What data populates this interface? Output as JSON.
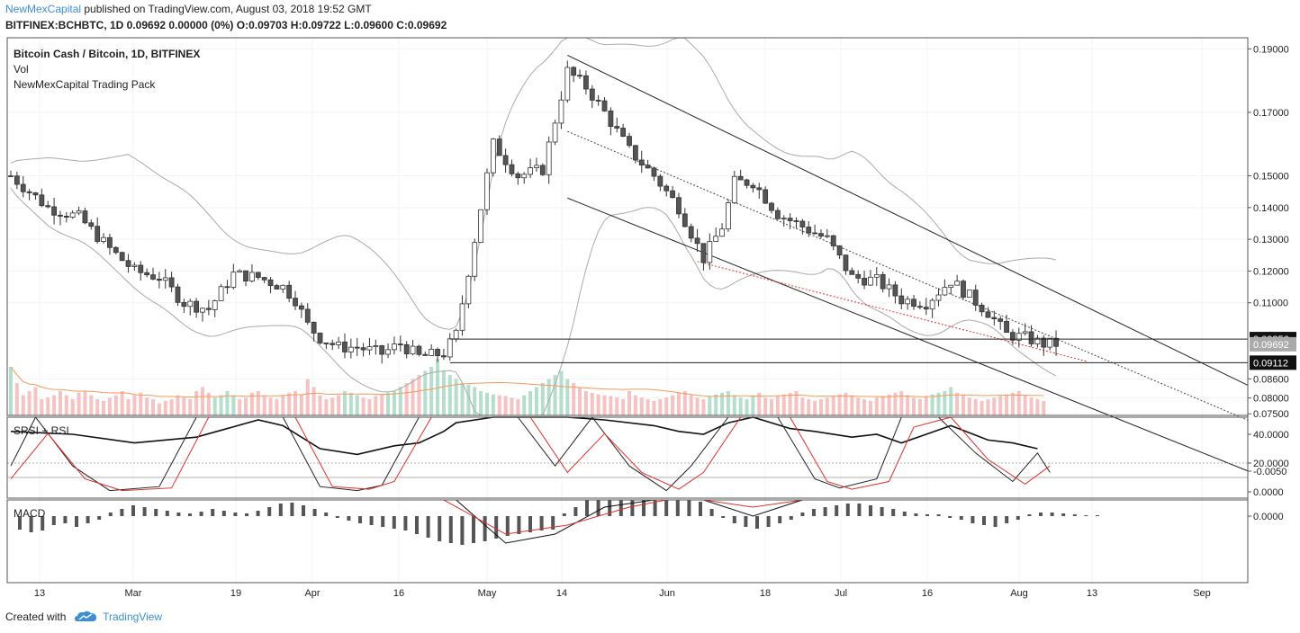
{
  "header": {
    "author": "NewMexCapital",
    "published": "published on TradingView.com, August 03, 2018 19:52 GMT",
    "ohlc_line": "BITFINEX:BCHBTC, 1D  0.09692 0.00000 (0%) O:0.09703 H:0.09722 L:0.09600 C:0.09692"
  },
  "legend": {
    "title": "Bitcoin Cash / Bitcoin, 1D, BITFINEX",
    "vol": "Vol",
    "pack": "NewMexCapital Trading Pack"
  },
  "footer": {
    "created_with": "Created with",
    "brand": "TradingView"
  },
  "colors": {
    "up": "#ffffff",
    "down": "#555555",
    "candle_border": "#333333",
    "vol_up": "#a8d8c4",
    "vol_down": "#f4b8b8",
    "ma": "#f39a5c",
    "signal": "#e0302a",
    "accent": "#3c8fd6"
  },
  "chart_data": [
    {
      "type": "candlestick",
      "title": "Bitcoin Cash / Bitcoin, 1D, BITFINEX",
      "y_range": [
        0.0745,
        0.1935
      ],
      "y_ticks": [
        "0.19000",
        "0.17000",
        "0.15000",
        "0.14000",
        "0.13000",
        "0.12000",
        "0.11000",
        "0.08600",
        "0.08000",
        "0.07500"
      ],
      "x_ticks": [
        "13",
        "Mar",
        "19",
        "Apr",
        "16",
        "May",
        "14",
        "Jun",
        "18",
        "Jul",
        "16",
        "Aug",
        "13",
        "Sep"
      ],
      "price_labels": [
        {
          "value": "0.09856",
          "style": "dark"
        },
        {
          "value": "0.09692",
          "style": "grey"
        },
        {
          "value": "0.09112",
          "style": "dark"
        }
      ],
      "horizontal_levels": [
        0.09856,
        0.09112
      ],
      "close_path": [
        [
          0,
          0.15
        ],
        [
          6,
          0.14
        ],
        [
          11,
          0.137
        ],
        [
          16,
          0.127
        ],
        [
          20,
          0.12
        ],
        [
          24,
          0.118
        ],
        [
          28,
          0.11
        ],
        [
          32,
          0.108
        ],
        [
          36,
          0.119
        ],
        [
          40,
          0.118
        ],
        [
          44,
          0.115
        ],
        [
          46,
          0.111
        ],
        [
          48,
          0.103
        ],
        [
          50,
          0.099
        ],
        [
          53,
          0.096
        ],
        [
          56,
          0.096
        ],
        [
          60,
          0.094
        ],
        [
          63,
          0.097
        ],
        [
          66,
          0.093
        ],
        [
          70,
          0.094
        ],
        [
          72,
          0.1
        ],
        [
          75,
          0.13
        ],
        [
          78,
          0.16
        ],
        [
          82,
          0.15
        ],
        [
          86,
          0.152
        ],
        [
          90,
          0.183
        ],
        [
          93,
          0.178
        ],
        [
          96,
          0.17
        ],
        [
          100,
          0.158
        ],
        [
          104,
          0.15
        ],
        [
          108,
          0.14
        ],
        [
          112,
          0.124
        ],
        [
          115,
          0.134
        ],
        [
          117,
          0.148
        ],
        [
          120,
          0.148
        ],
        [
          124,
          0.138
        ],
        [
          128,
          0.134
        ],
        [
          132,
          0.13
        ],
        [
          136,
          0.118
        ],
        [
          140,
          0.117
        ],
        [
          144,
          0.111
        ],
        [
          148,
          0.11
        ],
        [
          152,
          0.117
        ],
        [
          155,
          0.112
        ],
        [
          158,
          0.107
        ],
        [
          161,
          0.1
        ],
        [
          164,
          0.099
        ],
        [
          167,
          0.097
        ]
      ],
      "pattern": "descending channel",
      "channel_upper": [
        [
          90,
          0.188
        ],
        [
          200,
          0.084
        ]
      ],
      "channel_mid": [
        [
          90,
          0.164
        ],
        [
          200,
          0.073
        ]
      ],
      "channel_lower": [
        [
          90,
          0.143
        ],
        [
          200,
          0.057
        ]
      ]
    },
    {
      "type": "bar",
      "title": "Vol",
      "series": [
        {
          "name": "volume",
          "values": [
            60,
            40,
            25,
            30,
            35,
            20,
            22,
            25,
            30,
            25,
            20,
            28,
            30,
            25,
            20,
            18,
            22,
            25,
            30,
            20,
            25,
            28,
            22,
            20,
            15,
            18,
            20,
            25,
            22,
            20,
            30,
            35,
            28,
            22,
            25,
            30,
            25,
            20,
            22,
            28,
            30,
            25,
            22,
            20,
            24,
            28,
            30,
            25,
            45,
            35,
            25,
            20,
            22,
            25,
            30,
            28,
            25,
            22,
            20,
            24,
            26,
            28,
            30,
            35,
            40,
            45,
            50,
            55,
            60,
            70,
            55,
            50,
            45,
            40,
            38,
            35,
            30,
            28,
            26,
            25,
            24,
            22,
            20,
            25,
            30,
            35,
            40,
            45,
            50,
            55,
            45,
            40,
            35,
            30,
            28,
            26,
            25,
            24,
            22,
            20,
            30,
            25,
            22,
            20,
            18,
            20,
            22,
            25,
            28,
            30,
            25,
            22,
            20,
            24,
            26,
            28,
            30,
            25,
            22,
            20,
            25,
            28,
            22,
            20,
            24,
            26,
            28,
            30,
            22,
            20,
            18,
            20,
            22,
            24,
            26,
            28,
            25,
            22,
            20,
            18,
            22,
            24,
            26,
            28,
            30,
            25,
            22,
            20,
            24,
            26,
            28,
            30,
            35,
            28,
            25,
            22,
            20,
            18,
            20,
            22,
            24,
            26,
            28,
            30,
            25,
            22,
            20,
            18
          ]
        }
      ]
    },
    {
      "type": "line",
      "title": "SRSI + RSI",
      "y_ticks": [
        "40.0000",
        "20.0000",
        "0.0000"
      ],
      "series": [
        {
          "name": "RSI",
          "values": [
            [
              0,
              42
            ],
            [
              10,
              40
            ],
            [
              20,
              34
            ],
            [
              30,
              38
            ],
            [
              40,
              50
            ],
            [
              44,
              46
            ],
            [
              50,
              30
            ],
            [
              56,
              26
            ],
            [
              62,
              32
            ],
            [
              66,
              34
            ],
            [
              70,
              42
            ],
            [
              72,
              48
            ],
            [
              78,
              62
            ],
            [
              86,
              58
            ],
            [
              90,
              58
            ],
            [
              96,
              50
            ],
            [
              104,
              46
            ],
            [
              108,
              42
            ],
            [
              112,
              40
            ],
            [
              116,
              48
            ],
            [
              120,
              52
            ],
            [
              126,
              44
            ],
            [
              130,
              42
            ],
            [
              136,
              38
            ],
            [
              140,
              40
            ],
            [
              144,
              34
            ],
            [
              148,
              40
            ],
            [
              152,
              46
            ],
            [
              158,
              36
            ],
            [
              162,
              34
            ],
            [
              166,
              30
            ]
          ]
        },
        {
          "name": "StochK",
          "values": [
            [
              0,
              20
            ],
            [
              4,
              65
            ],
            [
              10,
              20
            ],
            [
              16,
              1
            ],
            [
              24,
              4
            ],
            [
              30,
              70
            ],
            [
              36,
              100
            ],
            [
              44,
              70
            ],
            [
              50,
              4
            ],
            [
              56,
              1
            ],
            [
              60,
              5
            ],
            [
              66,
              100
            ],
            [
              82,
              90
            ],
            [
              88,
              20
            ],
            [
              94,
              60
            ],
            [
              100,
              20
            ],
            [
              106,
              1
            ],
            [
              110,
              20
            ],
            [
              116,
              90
            ],
            [
              124,
              70
            ],
            [
              130,
              10
            ],
            [
              134,
              3
            ],
            [
              140,
              10
            ],
            [
              144,
              60
            ],
            [
              150,
              100
            ],
            [
              156,
              30
            ],
            [
              162,
              8
            ],
            [
              166,
              30
            ],
            [
              168,
              15
            ]
          ]
        },
        {
          "name": "StochD",
          "values": [
            [
              0,
              10
            ],
            [
              6,
              45
            ],
            [
              12,
              10
            ],
            [
              18,
              1
            ],
            [
              26,
              3
            ],
            [
              32,
              60
            ],
            [
              38,
              100
            ],
            [
              46,
              60
            ],
            [
              52,
              4
            ],
            [
              58,
              2
            ],
            [
              62,
              8
            ],
            [
              68,
              100
            ],
            [
              84,
              80
            ],
            [
              90,
              15
            ],
            [
              96,
              45
            ],
            [
              102,
              15
            ],
            [
              108,
              2
            ],
            [
              112,
              15
            ],
            [
              118,
              80
            ],
            [
              126,
              60
            ],
            [
              132,
              8
            ],
            [
              136,
              2
            ],
            [
              142,
              8
            ],
            [
              146,
              50
            ],
            [
              152,
              100
            ],
            [
              158,
              25
            ],
            [
              164,
              6
            ],
            [
              168,
              20
            ]
          ]
        }
      ]
    },
    {
      "type": "bar",
      "title": "MACD",
      "y_ticks": [
        "0.0000",
        "-0.0050"
      ],
      "series": [
        {
          "name": "histogram",
          "values": [
            0.0015,
            0.0018,
            0.0016,
            0.001,
            0.0008,
            0.0012,
            0.0008,
            0.0004,
            -0.0004,
            -0.0008,
            -0.0012,
            -0.001,
            -0.0008,
            -0.0006,
            -0.0004,
            -0.0003,
            -0.0005,
            -0.0008,
            -0.0006,
            -0.0004,
            -0.0003,
            -0.0006,
            -0.001,
            -0.0014,
            -0.0015,
            -0.0012,
            -0.0008,
            -0.0004,
            0.0002,
            0.0005,
            0.0008,
            0.001,
            0.0012,
            0.0014,
            0.0016,
            0.002,
            0.0024,
            0.0028,
            0.003,
            0.0032,
            0.003,
            0.0028,
            0.0025,
            0.0022,
            0.002,
            0.0018,
            0.0016,
            0.0015,
            -0.0003,
            -0.001,
            -0.002,
            -0.003,
            -0.0038,
            -0.0044,
            -0.0048,
            -0.005,
            -0.0046,
            -0.004,
            -0.0032,
            -0.0024,
            -0.0016,
            -0.0008,
            0.0002,
            0.0008,
            0.0012,
            0.0014,
            0.0012,
            0.0008,
            0.0004,
            -0.0004,
            -0.0008,
            -0.001,
            -0.0012,
            -0.0014,
            -0.0014,
            -0.0012,
            -0.001,
            -0.0008,
            -0.0005,
            -0.0003,
            -0.0002,
            -0.0002,
            0.0002,
            0.0004,
            0.0008,
            0.001,
            0.0012,
            0.0008,
            0.0004,
            -0.0002,
            -0.0004,
            -0.0004,
            -0.0003,
            -0.0002,
            -0.0001,
            -0.0001
          ]
        },
        {
          "name": "MACD",
          "values": [
            [
              0,
              -0.006
            ],
            [
              8,
              -0.0025
            ],
            [
              14,
              -0.004
            ],
            [
              22,
              -0.0075
            ],
            [
              30,
              -0.0045
            ],
            [
              40,
              -0.0025
            ],
            [
              46,
              -0.005
            ],
            [
              54,
              -0.0068
            ],
            [
              64,
              -0.0058
            ],
            [
              72,
              -0.004
            ],
            [
              80,
              0.003
            ],
            [
              88,
              0.002
            ],
            [
              96,
              -0.001
            ],
            [
              104,
              -0.006
            ],
            [
              112,
              -0.0048
            ],
            [
              120,
              0.0
            ],
            [
              128,
              -0.002
            ],
            [
              136,
              -0.005
            ],
            [
              144,
              -0.0065
            ],
            [
              152,
              -0.006
            ],
            [
              158,
              -0.003
            ],
            [
              164,
              -0.0048
            ],
            [
              168,
              -0.0048
            ]
          ]
        },
        {
          "name": "Signal",
          "values": [
            [
              0,
              -0.006
            ],
            [
              12,
              -0.003
            ],
            [
              20,
              -0.0055
            ],
            [
              28,
              -0.0072
            ],
            [
              36,
              -0.0038
            ],
            [
              44,
              -0.003
            ],
            [
              52,
              -0.006
            ],
            [
              60,
              -0.0065
            ],
            [
              70,
              -0.0052
            ],
            [
              80,
              0.002
            ],
            [
              90,
              0.001
            ],
            [
              100,
              -0.001
            ],
            [
              106,
              -0.003
            ],
            [
              112,
              -0.0035
            ],
            [
              120,
              -0.001
            ],
            [
              128,
              -0.0025
            ],
            [
              136,
              -0.0045
            ],
            [
              144,
              -0.006
            ],
            [
              152,
              -0.006
            ],
            [
              158,
              -0.0038
            ],
            [
              164,
              -0.0045
            ],
            [
              168,
              -0.0048
            ]
          ]
        }
      ]
    }
  ]
}
